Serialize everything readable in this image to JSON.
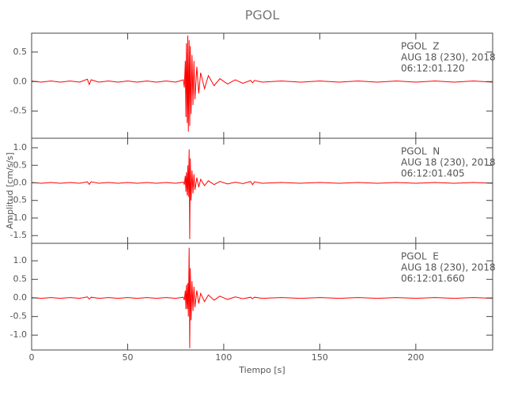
{
  "chart_data": [
    {
      "type": "line",
      "title": "PGOL",
      "annotations": [
        "PGOL  Z",
        "AUG 18 (230), 2018",
        "06:12:01.120"
      ],
      "xlim": [
        0,
        240
      ],
      "xticks": [
        0,
        50,
        100,
        150,
        200
      ],
      "ylim": [
        -0.96,
        0.82
      ],
      "yticks": [
        -0.5,
        {
          "value": 0,
          "label": "0.0"
        },
        0.5
      ],
      "x": [
        0,
        5,
        10,
        15,
        20,
        25,
        29,
        30,
        31,
        35,
        40,
        45,
        50,
        55,
        60,
        65,
        70,
        75,
        79,
        79.5,
        80,
        80.3,
        80.6,
        81,
        81.3,
        81.6,
        82,
        82.3,
        82.6,
        83,
        83.5,
        84,
        84.5,
        85,
        86,
        87,
        88,
        90,
        92,
        95,
        98,
        102,
        106,
        110,
        114,
        115,
        116,
        120,
        130,
        140,
        150,
        160,
        170,
        180,
        190,
        200,
        210,
        220,
        230,
        240
      ],
      "series": [
        {
          "color": "#ff0000",
          "values": [
            0.01,
            -0.01,
            0.01,
            -0.01,
            0.01,
            -0.01,
            0.04,
            -0.05,
            0.03,
            -0.01,
            0.01,
            -0.01,
            0.01,
            -0.01,
            0.01,
            -0.01,
            0.01,
            -0.01,
            0.03,
            -0.1,
            0.35,
            -0.6,
            0.65,
            -0.7,
            0.78,
            -0.85,
            0.7,
            -0.75,
            0.6,
            -0.55,
            0.45,
            -0.4,
            0.35,
            -0.3,
            0.25,
            -0.2,
            0.15,
            -0.12,
            0.1,
            -0.07,
            0.05,
            -0.04,
            0.03,
            -0.03,
            0.02,
            -0.02,
            0.02,
            -0.01,
            0.01,
            -0.01,
            0.01,
            -0.01,
            0.01,
            -0.01,
            0.01,
            -0.01,
            0.01,
            -0.01,
            0.01,
            -0.01
          ]
        }
      ]
    },
    {
      "type": "line",
      "ylabel": "Amplitud [cm/s/s]",
      "annotations": [
        "PGOL  N",
        "AUG 18 (230), 2018",
        "06:12:01.405"
      ],
      "xlim": [
        0,
        240
      ],
      "xticks": [
        0,
        50,
        100,
        150,
        200
      ],
      "ylim": [
        -1.72,
        1.27
      ],
      "yticks": [
        -1.5,
        {
          "value": -1,
          "label": "-1.0"
        },
        -0.5,
        {
          "value": 0,
          "label": "0.0"
        },
        0.5,
        {
          "value": 1,
          "label": "1.0"
        }
      ],
      "x": [
        0,
        5,
        10,
        15,
        20,
        25,
        29,
        30,
        31,
        35,
        40,
        45,
        50,
        55,
        60,
        65,
        70,
        75,
        79,
        79.5,
        80,
        80.3,
        80.6,
        81,
        81.3,
        81.6,
        82,
        82.3,
        82.6,
        83,
        83.5,
        84,
        84.5,
        85,
        86,
        87,
        88,
        90,
        92,
        95,
        98,
        102,
        106,
        110,
        114,
        115,
        116,
        120,
        130,
        140,
        150,
        160,
        170,
        180,
        190,
        200,
        210,
        220,
        230,
        240
      ],
      "series": [
        {
          "color": "#ff0000",
          "values": [
            0.01,
            -0.01,
            0.01,
            -0.01,
            0.01,
            -0.01,
            0.03,
            -0.04,
            0.03,
            -0.01,
            0.01,
            -0.01,
            0.01,
            -0.01,
            0.01,
            -0.01,
            0.01,
            -0.01,
            0.02,
            -0.05,
            0.2,
            -0.25,
            0.3,
            -0.35,
            0.5,
            -0.4,
            0.95,
            -1.6,
            0.7,
            -0.5,
            0.35,
            -0.3,
            0.25,
            -0.2,
            0.15,
            -0.12,
            0.1,
            -0.08,
            0.06,
            -0.05,
            0.04,
            -0.03,
            0.02,
            -0.02,
            0.04,
            -0.05,
            0.03,
            -0.01,
            0.01,
            -0.01,
            0.01,
            -0.01,
            0.01,
            -0.01,
            0.01,
            -0.01,
            0.01,
            -0.01,
            0.01,
            -0.01
          ]
        }
      ]
    },
    {
      "type": "line",
      "xlabel": "Tiempo [s]",
      "annotations": [
        "PGOL  E",
        "AUG 18 (230), 2018",
        "06:12:01.660"
      ],
      "xlim": [
        0,
        240
      ],
      "xticks": [
        0,
        50,
        100,
        150,
        200
      ],
      "ylim": [
        -1.4,
        1.47
      ],
      "yticks": [
        {
          "value": -1,
          "label": "-1.0"
        },
        -0.5,
        {
          "value": 0,
          "label": "0.0"
        },
        0.5,
        {
          "value": 1,
          "label": "1.0"
        }
      ],
      "x": [
        0,
        5,
        10,
        15,
        20,
        25,
        29,
        30,
        31,
        35,
        40,
        45,
        50,
        55,
        60,
        65,
        70,
        75,
        79,
        79.5,
        80,
        80.3,
        80.6,
        81,
        81.3,
        81.6,
        82,
        82.3,
        82.6,
        83,
        83.5,
        84,
        84.5,
        85,
        86,
        87,
        88,
        90,
        92,
        95,
        98,
        102,
        106,
        110,
        114,
        115,
        116,
        120,
        130,
        140,
        150,
        160,
        170,
        180,
        190,
        200,
        210,
        220,
        230,
        240
      ],
      "series": [
        {
          "color": "#ff0000",
          "values": [
            0.01,
            -0.01,
            0.01,
            -0.01,
            0.01,
            -0.01,
            0.03,
            -0.03,
            0.02,
            -0.01,
            0.01,
            -0.01,
            0.01,
            -0.01,
            0.01,
            -0.01,
            0.01,
            -0.01,
            0.02,
            -0.06,
            0.2,
            -0.3,
            0.35,
            -0.3,
            0.4,
            -0.5,
            1.35,
            -1.35,
            0.8,
            -0.6,
            0.45,
            -0.35,
            0.3,
            -0.25,
            0.2,
            -0.15,
            0.12,
            -0.1,
            0.08,
            -0.06,
            0.05,
            -0.04,
            0.03,
            -0.02,
            0.02,
            -0.02,
            0.02,
            -0.01,
            0.01,
            -0.01,
            0.01,
            -0.01,
            0.01,
            -0.01,
            0.01,
            -0.01,
            0.01,
            -0.01,
            0.01,
            -0.01
          ]
        }
      ]
    }
  ]
}
